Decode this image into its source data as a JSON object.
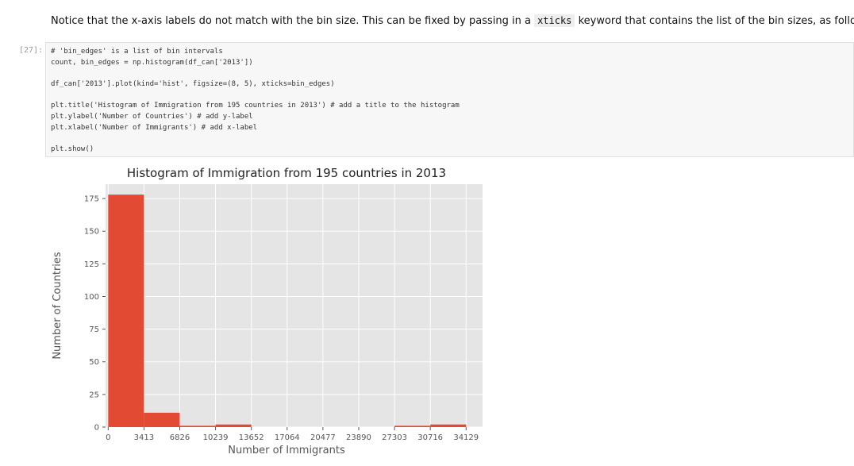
{
  "markdown": {
    "before": "Notice that the x-axis labels do not match with the bin size. This can be fixed by passing in a",
    "code": "xticks",
    "after": "keyword that contains the list of the bin sizes, as follows:"
  },
  "cell": {
    "prompt": "[27]:",
    "blocks": [
      [
        "# 'bin_edges' is a list of bin intervals",
        "count, bin_edges = np.histogram(df_can['2013'])"
      ],
      [
        "df_can['2013'].plot(kind='hist', figsize=(8, 5), xticks=bin_edges)"
      ],
      [
        "plt.title('Histogram of Immigration from 195 countries in 2013') # add a title to the histogram",
        "plt.ylabel('Number of Countries') # add y-label",
        "plt.xlabel('Number of Immigrants') # add x-label"
      ],
      [
        "plt.show()"
      ]
    ]
  },
  "chart_data": {
    "type": "histogram",
    "title": "Histogram of Immigration from 195 countries in 2013",
    "x_label": "Number of Immigrants",
    "y_label": "Number of Countries",
    "bins": [
      0,
      3413,
      6826,
      10239,
      13652,
      17064,
      20477,
      23890,
      27303,
      30716,
      34129
    ],
    "values": [
      178,
      11,
      1,
      2,
      0,
      0,
      0,
      0,
      1,
      2
    ],
    "color": "#e24a33",
    "xlim": [
      -250,
      35700
    ],
    "ylim": [
      0,
      186
    ],
    "xticks": [
      0,
      3413,
      6826,
      10239,
      13652,
      17064,
      20477,
      23890,
      27303,
      30716,
      34129
    ],
    "yticks": [
      0,
      25,
      50,
      75,
      100,
      125,
      150,
      175
    ],
    "grid": true
  }
}
